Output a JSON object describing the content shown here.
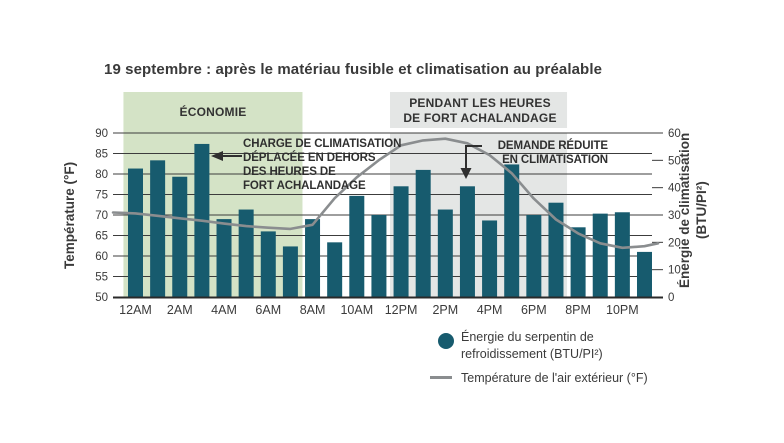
{
  "title": "19 septembre : après le matériau fusible et climatisation au préalable",
  "colors": {
    "bar": "#175b6e",
    "line": "#8a8d8f",
    "economy_bg": "#d4e3c6",
    "peak_bg": "#e4e6e5",
    "grid": "#3c3c3c",
    "axis_line": "#2a2a2a",
    "tick_text": "#3b3b3b",
    "annotation_text": "#2f2f2f"
  },
  "chart_data": {
    "type": "bar",
    "title": "19 septembre : après le matériau fusible et climatisation au préalable",
    "hours": [
      "12AM",
      "1AM",
      "2AM",
      "3AM",
      "4AM",
      "5AM",
      "6AM",
      "7AM",
      "8AM",
      "9AM",
      "10AM",
      "11AM",
      "12PM",
      "1PM",
      "2PM",
      "3PM",
      "4PM",
      "5PM",
      "6PM",
      "7PM",
      "8PM",
      "9PM",
      "10PM",
      "11PM"
    ],
    "x_tick_labels": [
      "12AM",
      "2AM",
      "4AM",
      "6AM",
      "8AM",
      "10AM",
      "12PM",
      "2PM",
      "4PM",
      "6PM",
      "8PM",
      "10PM"
    ],
    "series": [
      {
        "name": "Énergie du serpentin de refroidissement (BTU/PI²)",
        "type": "bar",
        "axis": "right",
        "values_btu": [
          47,
          50,
          44,
          56,
          28.5,
          32,
          24,
          18.5,
          28.5,
          20,
          37,
          30,
          40.5,
          46.5,
          32,
          40.5,
          28,
          48.5,
          30,
          34.5,
          25.5,
          30.5,
          31,
          16.5
        ]
      },
      {
        "name": "Température de l'air extérieur (°F)",
        "type": "line",
        "axis": "left",
        "values_f": [
          70.4,
          69.8,
          69.2,
          68.6,
          67.9,
          67.3,
          66.9,
          66.6,
          67.6,
          74.1,
          79.2,
          83.4,
          87.0,
          88.2,
          88.6,
          87.5,
          84.6,
          80.2,
          74.0,
          68.9,
          65.5,
          63.1,
          62.0,
          62.4
        ],
        "edge_values_f": [
          70.6,
          63.1
        ]
      }
    ],
    "y_left": {
      "label": "Température (°F)",
      "min": 50,
      "max": 90,
      "ticks": [
        50,
        55,
        60,
        65,
        70,
        75,
        80,
        85,
        90
      ]
    },
    "y_right": {
      "label": "Énergie de climatisation\n(BTU/PI²)",
      "min": 0,
      "max": 60,
      "ticks": [
        0,
        10,
        20,
        30,
        40,
        50,
        60
      ]
    },
    "grid": "horizontal",
    "legend_position": "bottom-right",
    "regions": [
      {
        "name": "economy",
        "label": "ÉCONOMIE",
        "from_hour_index": 0,
        "to_hour_index": 8
      },
      {
        "name": "peak",
        "label": "PENDANT LES HEURES\nDE FORT ACHALANDAGE",
        "from_hour_index": 12,
        "to_hour_index": 20
      }
    ],
    "annotations": [
      {
        "name": "shifted-load",
        "text": "CHARGE DE CLIMATISATION\nDÉPLACÉE EN DEHORS\nDES HEURES DE\nFORT ACHALANDAGE",
        "arrow": "left",
        "target_hour": "3AM"
      },
      {
        "name": "reduced-demand",
        "text": "DEMANDE RÉDUITE\nEN CLIMATISATION",
        "arrow": "down",
        "target_hour": "3PM"
      }
    ],
    "legend": {
      "bar_label": "Énergie du serpentin de\nrefroidissement (BTU/PI²)",
      "line_label": "Température de l'air extérieur (°F)"
    }
  }
}
